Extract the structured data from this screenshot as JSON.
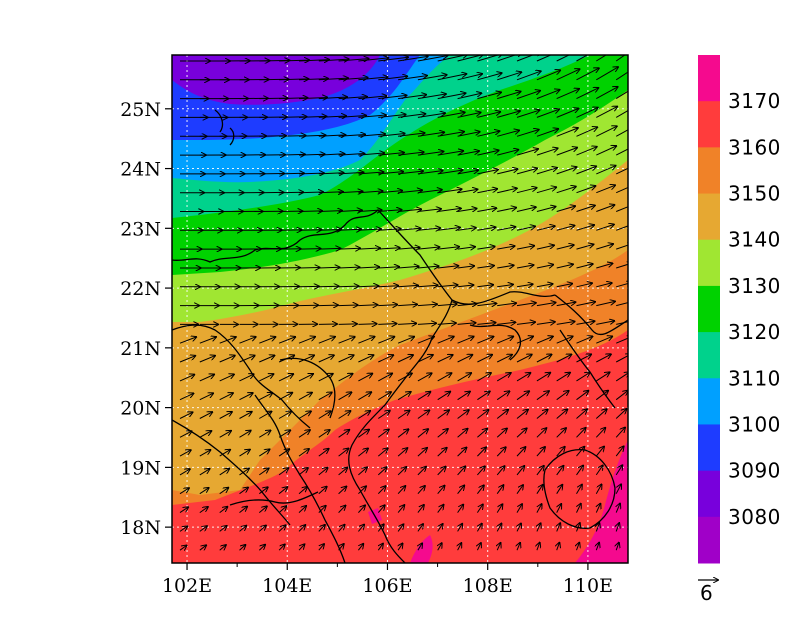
{
  "map": {
    "lon_range": [
      101.7,
      110.8
    ],
    "lat_range": [
      17.4,
      25.9
    ],
    "x_ticks": [
      "102E",
      "104E",
      "106E",
      "108E",
      "110E"
    ],
    "x_tick_values": [
      102,
      104,
      106,
      108,
      110
    ],
    "y_ticks": [
      "18N",
      "19N",
      "20N",
      "21N",
      "22N",
      "23N",
      "24N",
      "25N"
    ],
    "y_tick_values": [
      18,
      19,
      20,
      21,
      22,
      23,
      24,
      25
    ],
    "grid": "dotted",
    "wind_vectors": true,
    "coastlines_and_borders": true
  },
  "colorbar": {
    "labels": [
      "3170",
      "3160",
      "3150",
      "3140",
      "3130",
      "3120",
      "3110",
      "3100",
      "3090",
      "3080"
    ],
    "colors_top_to_bottom": [
      "#f50a8e",
      "#ff3c3c",
      "#f08228",
      "#e6a832",
      "#a0e632",
      "#00d200",
      "#00d28c",
      "#00a0ff",
      "#1e3cff",
      "#7800dc",
      "#a000c8"
    ]
  },
  "reference_vector": {
    "label": "6"
  }
}
